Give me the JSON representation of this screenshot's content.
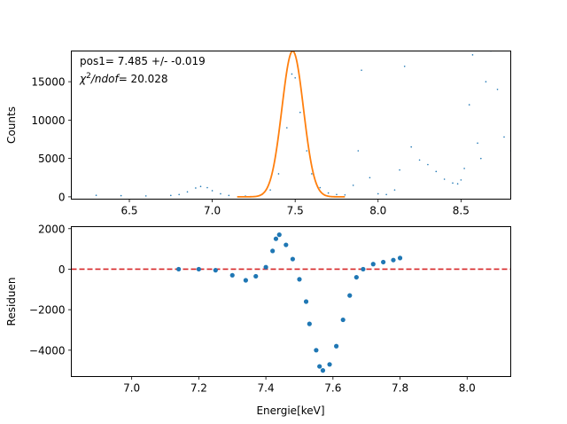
{
  "chart_data": [
    {
      "type": "scatter",
      "panel": "top",
      "ylabel": "Counts",
      "xlim": [
        6.15,
        8.8
      ],
      "ylim": [
        -300,
        19000
      ],
      "x_ticks": [
        6.5,
        7.0,
        7.5,
        8.0,
        8.5
      ],
      "x_tick_labels": [
        "6.5",
        "7.0",
        "7.5",
        "8.0",
        "8.5"
      ],
      "y_ticks": [
        0,
        5000,
        10000,
        15000
      ],
      "y_tick_labels": [
        "0",
        "5000",
        "10000",
        "15000"
      ],
      "annotations": [
        {
          "text": "pos1= 7.485 +/- -0.019"
        },
        {
          "text_prefix": "χ",
          "superscript": "2",
          "italic": "/ndof",
          "text_suffix": "= 20.028"
        }
      ],
      "series": [
        {
          "kind": "points",
          "color": "#1f77b4",
          "points": [
            [
              6.15,
              100
            ],
            [
              6.3,
              200
            ],
            [
              6.45,
              150
            ],
            [
              6.6,
              120
            ],
            [
              6.75,
              180
            ],
            [
              6.8,
              300
            ],
            [
              6.85,
              650
            ],
            [
              6.9,
              1150
            ],
            [
              6.93,
              1350
            ],
            [
              6.97,
              1200
            ],
            [
              7.0,
              800
            ],
            [
              7.05,
              400
            ],
            [
              7.1,
              180
            ],
            [
              7.2,
              100
            ],
            [
              7.3,
              300
            ],
            [
              7.35,
              900
            ],
            [
              7.4,
              3000
            ],
            [
              7.45,
              9000
            ],
            [
              7.48,
              16000
            ],
            [
              7.5,
              15500
            ],
            [
              7.53,
              11000
            ],
            [
              7.57,
              6000
            ],
            [
              7.6,
              3000
            ],
            [
              7.65,
              1200
            ],
            [
              7.7,
              500
            ],
            [
              7.75,
              300
            ],
            [
              7.8,
              250
            ],
            [
              7.85,
              1500
            ],
            [
              7.88,
              6000
            ],
            [
              7.9,
              16500
            ],
            [
              7.95,
              2500
            ],
            [
              8.0,
              400
            ],
            [
              8.05,
              300
            ],
            [
              8.1,
              900
            ],
            [
              8.13,
              3500
            ],
            [
              8.16,
              17000
            ],
            [
              8.2,
              6500
            ],
            [
              8.25,
              4800
            ],
            [
              8.3,
              4200
            ],
            [
              8.35,
              3300
            ],
            [
              8.4,
              2300
            ],
            [
              8.45,
              1800
            ],
            [
              8.48,
              1700
            ],
            [
              8.5,
              2200
            ],
            [
              8.52,
              3700
            ],
            [
              8.55,
              12000
            ],
            [
              8.57,
              18500
            ],
            [
              8.6,
              7000
            ],
            [
              8.62,
              5000
            ],
            [
              8.65,
              15000
            ],
            [
              8.68,
              19000
            ],
            [
              8.72,
              14000
            ],
            [
              8.76,
              7800
            ],
            [
              8.8,
              6000
            ]
          ]
        },
        {
          "kind": "fit",
          "color": "#ff7f0e",
          "model": "gaussian",
          "amplitude": 19000,
          "center": 7.485,
          "sigma": 0.065,
          "x_range": [
            7.15,
            7.8
          ]
        }
      ]
    },
    {
      "type": "scatter",
      "panel": "bottom",
      "xlabel": "Energie[keV]",
      "ylabel": "Residuen",
      "xlim": [
        6.82,
        8.13
      ],
      "ylim": [
        -5300,
        2100
      ],
      "x_ticks": [
        7.0,
        7.2,
        7.4,
        7.6,
        7.8,
        8.0
      ],
      "x_tick_labels": [
        "7.0",
        "7.2",
        "7.4",
        "7.6",
        "7.8",
        "8.0"
      ],
      "y_ticks": [
        2000,
        0,
        -2000,
        -4000
      ],
      "y_tick_labels": [
        "2000",
        "0",
        "−2000",
        "−4000"
      ],
      "reference_line": {
        "y": 0,
        "color": "#d62728",
        "style": "dashed"
      },
      "series": [
        {
          "kind": "points",
          "color": "#1f77b4",
          "points": [
            [
              7.14,
              0
            ],
            [
              7.2,
              0
            ],
            [
              7.25,
              -50
            ],
            [
              7.3,
              -300
            ],
            [
              7.34,
              -550
            ],
            [
              7.37,
              -350
            ],
            [
              7.4,
              100
            ],
            [
              7.42,
              900
            ],
            [
              7.43,
              1500
            ],
            [
              7.44,
              1700
            ],
            [
              7.46,
              1200
            ],
            [
              7.48,
              500
            ],
            [
              7.5,
              -500
            ],
            [
              7.52,
              -1600
            ],
            [
              7.53,
              -2700
            ],
            [
              7.55,
              -4000
            ],
            [
              7.56,
              -4800
            ],
            [
              7.57,
              -5000
            ],
            [
              7.59,
              -4700
            ],
            [
              7.61,
              -3800
            ],
            [
              7.63,
              -2500
            ],
            [
              7.65,
              -1300
            ],
            [
              7.67,
              -400
            ],
            [
              7.69,
              0
            ],
            [
              7.72,
              250
            ],
            [
              7.75,
              350
            ],
            [
              7.78,
              450
            ],
            [
              7.8,
              550
            ]
          ]
        }
      ]
    }
  ]
}
